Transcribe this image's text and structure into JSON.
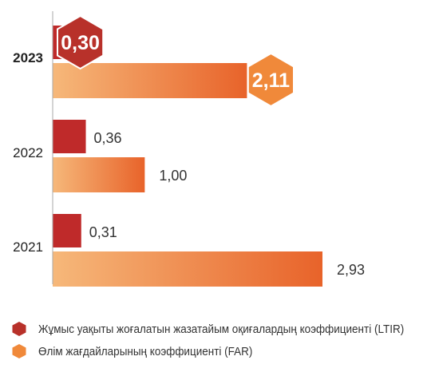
{
  "chart_data": {
    "type": "bar",
    "orientation": "horizontal",
    "categories": [
      "2023",
      "2022",
      "2021"
    ],
    "highlight_category": "2023",
    "series": [
      {
        "name": "Жұмыс уақыты жоғалатын жазатайым оқиғалардың коэффициенті (LTIR)",
        "values": [
          0.3,
          0.36,
          0.31
        ],
        "labels": [
          "0,30",
          "0,36",
          "0,31"
        ],
        "color": "#bf2a2a"
      },
      {
        "name": "Өлім жағдайларының коэффициенті (FAR)",
        "values": [
          2.11,
          1.0,
          2.93
        ],
        "labels": [
          "2,11",
          "1,00",
          "2,93"
        ],
        "color_start": "#f6b87a",
        "color_end": "#e8632a"
      }
    ],
    "xlim": [
      0,
      3.3
    ],
    "grid": false,
    "legend_position": "bottom"
  },
  "colors": {
    "ltir_badge": "#b8312a",
    "far_badge": "#f0893a",
    "axis": "#aaaaaa",
    "text": "#333333"
  },
  "legend_icons": [
    "hexagon-icon",
    "hexagon-icon"
  ]
}
